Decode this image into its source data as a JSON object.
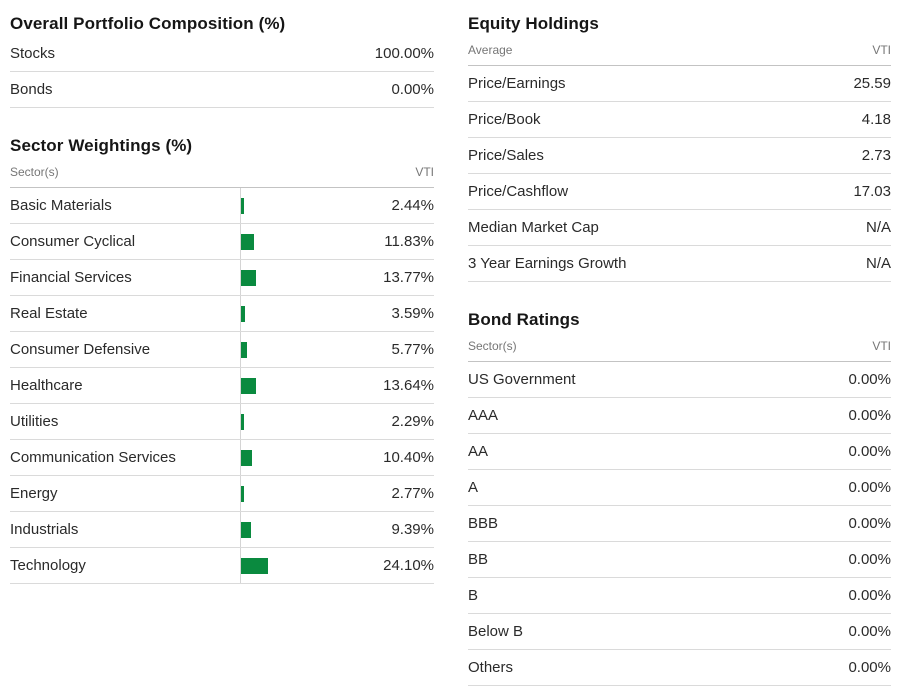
{
  "accent_green": "#0a8a3f",
  "separator_color": "#dadada",
  "portfolio": {
    "title": "Overall Portfolio Composition (%)",
    "rows": [
      {
        "label": "Stocks",
        "value": "100.00%"
      },
      {
        "label": "Bonds",
        "value": "0.00%"
      }
    ]
  },
  "sector_weightings": {
    "title": "Sector Weightings (%)",
    "col_label": "Sector(s)",
    "col_value": "VTI",
    "rows": [
      {
        "label": "Basic Materials",
        "pct": 2.44,
        "value": "2.44%"
      },
      {
        "label": "Consumer Cyclical",
        "pct": 11.83,
        "value": "11.83%"
      },
      {
        "label": "Financial Services",
        "pct": 13.77,
        "value": "13.77%"
      },
      {
        "label": "Real Estate",
        "pct": 3.59,
        "value": "3.59%"
      },
      {
        "label": "Consumer Defensive",
        "pct": 5.77,
        "value": "5.77%"
      },
      {
        "label": "Healthcare",
        "pct": 13.64,
        "value": "13.64%"
      },
      {
        "label": "Utilities",
        "pct": 2.29,
        "value": "2.29%"
      },
      {
        "label": "Communication Services",
        "pct": 10.4,
        "value": "10.40%"
      },
      {
        "label": "Energy",
        "pct": 2.77,
        "value": "2.77%"
      },
      {
        "label": "Industrials",
        "pct": 9.39,
        "value": "9.39%"
      },
      {
        "label": "Technology",
        "pct": 24.1,
        "value": "24.10%"
      }
    ]
  },
  "equity_holdings": {
    "title": "Equity Holdings",
    "col_label": "Average",
    "col_value": "VTI",
    "rows": [
      {
        "label": "Price/Earnings",
        "value": "25.59"
      },
      {
        "label": "Price/Book",
        "value": "4.18"
      },
      {
        "label": "Price/Sales",
        "value": "2.73"
      },
      {
        "label": "Price/Cashflow",
        "value": "17.03"
      },
      {
        "label": "Median Market Cap",
        "value": "N/A"
      },
      {
        "label": "3 Year Earnings Growth",
        "value": "N/A"
      }
    ]
  },
  "bond_ratings": {
    "title": "Bond Ratings",
    "col_label": "Sector(s)",
    "col_value": "VTI",
    "rows": [
      {
        "label": "US Government",
        "value": "0.00%"
      },
      {
        "label": "AAA",
        "value": "0.00%"
      },
      {
        "label": "AA",
        "value": "0.00%"
      },
      {
        "label": "A",
        "value": "0.00%"
      },
      {
        "label": "BBB",
        "value": "0.00%"
      },
      {
        "label": "BB",
        "value": "0.00%"
      },
      {
        "label": "B",
        "value": "0.00%"
      },
      {
        "label": "Below B",
        "value": "0.00%"
      },
      {
        "label": "Others",
        "value": "0.00%"
      }
    ]
  },
  "chart_data": {
    "type": "bar",
    "orientation": "horizontal",
    "title": "Sector Weightings (%)",
    "series_label": "VTI",
    "categories": [
      "Basic Materials",
      "Consumer Cyclical",
      "Financial Services",
      "Real Estate",
      "Consumer Defensive",
      "Healthcare",
      "Utilities",
      "Communication Services",
      "Energy",
      "Industrials",
      "Technology"
    ],
    "values": [
      2.44,
      11.83,
      13.77,
      3.59,
      5.77,
      13.64,
      2.29,
      10.4,
      2.77,
      9.39,
      24.1
    ],
    "xlim": [
      0,
      100
    ],
    "bar_color": "#0a8a3f"
  }
}
